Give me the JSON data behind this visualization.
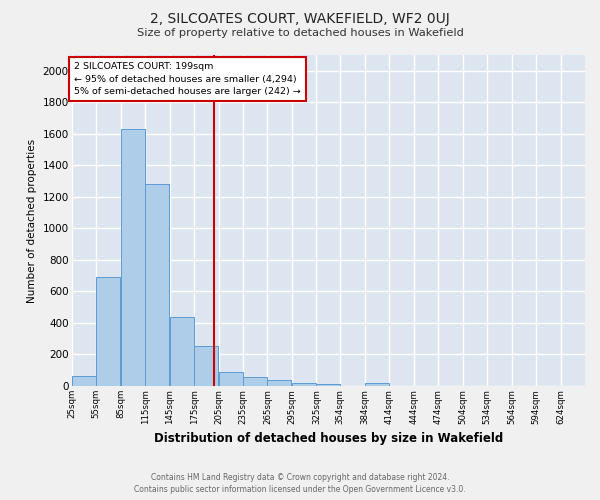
{
  "title": "2, SILCOATES COURT, WAKEFIELD, WF2 0UJ",
  "subtitle": "Size of property relative to detached houses in Wakefield",
  "xlabel": "Distribution of detached houses by size in Wakefield",
  "ylabel": "Number of detached properties",
  "footer_line1": "Contains HM Land Registry data © Crown copyright and database right 2024.",
  "footer_line2": "Contains public sector information licensed under the Open Government Licence v3.0.",
  "bar_labels": [
    "25sqm",
    "55sqm",
    "85sqm",
    "115sqm",
    "145sqm",
    "175sqm",
    "205sqm",
    "235sqm",
    "265sqm",
    "295sqm",
    "325sqm",
    "354sqm",
    "384sqm",
    "414sqm",
    "444sqm",
    "474sqm",
    "504sqm",
    "534sqm",
    "564sqm",
    "594sqm",
    "624sqm"
  ],
  "bar_values": [
    65,
    690,
    1630,
    1280,
    440,
    255,
    90,
    55,
    35,
    22,
    12,
    0,
    18,
    0,
    0,
    0,
    0,
    0,
    0,
    0,
    0
  ],
  "bar_color": "#aecde8",
  "bar_edge_color": "#5b9bd5",
  "fig_bg_color": "#f0f0f0",
  "plot_bg_color": "#dde6f0",
  "grid_color": "#ffffff",
  "annotation_box_color": "#ffffff",
  "annotation_box_edge": "#cc0000",
  "annotation_text_line1": "2 SILCOATES COURT: 199sqm",
  "annotation_text_line2": "← 95% of detached houses are smaller (4,294)",
  "annotation_text_line3": "5% of semi-detached houses are larger (242) →",
  "red_line_x": 199,
  "ylim": [
    0,
    2100
  ],
  "yticks": [
    0,
    200,
    400,
    600,
    800,
    1000,
    1200,
    1400,
    1600,
    1800,
    2000
  ],
  "bin_size": 30
}
